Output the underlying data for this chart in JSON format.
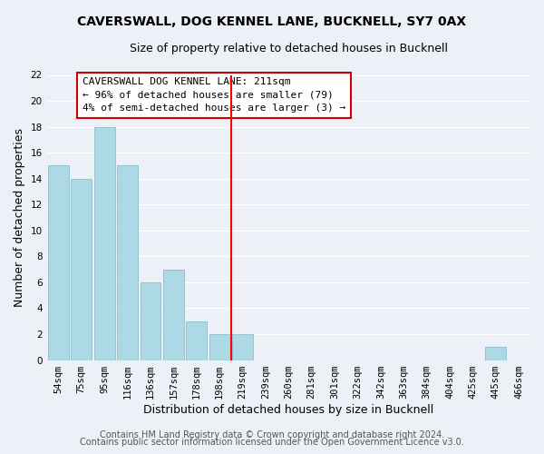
{
  "title": "CAVERSWALL, DOG KENNEL LANE, BUCKNELL, SY7 0AX",
  "subtitle": "Size of property relative to detached houses in Bucknell",
  "xlabel": "Distribution of detached houses by size in Bucknell",
  "ylabel": "Number of detached properties",
  "bar_labels": [
    "54sqm",
    "75sqm",
    "95sqm",
    "116sqm",
    "136sqm",
    "157sqm",
    "178sqm",
    "198sqm",
    "219sqm",
    "239sqm",
    "260sqm",
    "281sqm",
    "301sqm",
    "322sqm",
    "342sqm",
    "363sqm",
    "384sqm",
    "404sqm",
    "425sqm",
    "445sqm",
    "466sqm"
  ],
  "bar_values": [
    15,
    14,
    18,
    15,
    6,
    7,
    3,
    2,
    2,
    0,
    0,
    0,
    0,
    0,
    0,
    0,
    0,
    0,
    0,
    1,
    0
  ],
  "bar_color": "#add8e6",
  "bar_edge_color": "#8bbccc",
  "vline_x": 7.5,
  "vline_color": "red",
  "annotation_title": "CAVERSWALL DOG KENNEL LANE: 211sqm",
  "annotation_line1": "← 96% of detached houses are smaller (79)",
  "annotation_line2": "4% of semi-detached houses are larger (3) →",
  "ylim": [
    0,
    22
  ],
  "yticks": [
    0,
    2,
    4,
    6,
    8,
    10,
    12,
    14,
    16,
    18,
    20,
    22
  ],
  "footer1": "Contains HM Land Registry data © Crown copyright and database right 2024.",
  "footer2": "Contains public sector information licensed under the Open Government Licence v3.0.",
  "bg_color": "#eef0f8",
  "grid_color": "#ffffff",
  "title_fontsize": 10,
  "subtitle_fontsize": 9,
  "axis_label_fontsize": 9,
  "tick_fontsize": 7.5,
  "annotation_fontsize": 8,
  "footer_fontsize": 7
}
